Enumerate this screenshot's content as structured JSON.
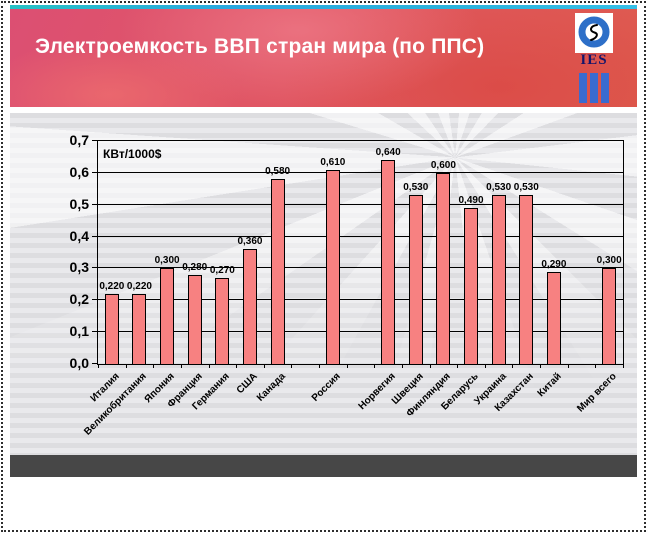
{
  "slide": {
    "title": "Электроемкость ВВП стран мира (по ППС)",
    "logo": {
      "text": "IES"
    }
  },
  "chart_data": {
    "type": "bar",
    "title": "Электроемкость ВВП стран мира (по ППС)",
    "y_axis": {
      "unit": "КВт/1000$",
      "min": 0,
      "max": 0.7,
      "step": 0.1,
      "ticks_top_to_bottom": [
        "0,7",
        "0,6",
        "0,5",
        "0,4",
        "0,3",
        "0,2",
        "0,1",
        "0,0"
      ]
    },
    "grid": true,
    "legend": false,
    "categories": [
      "Италия",
      "Великобритания",
      "Япония",
      "Франция",
      "Германия",
      "США",
      "Канада",
      "",
      "Россия",
      "",
      "Норвегия",
      "Швеция",
      "Финляндия",
      "Беларусь",
      "Украина",
      "Казахстан",
      "Китай",
      "",
      "Мир всего"
    ],
    "values": [
      0.22,
      0.22,
      0.3,
      0.28,
      0.27,
      0.36,
      0.58,
      null,
      0.61,
      null,
      0.64,
      0.53,
      0.6,
      0.49,
      0.53,
      0.53,
      0.29,
      null,
      0.3
    ],
    "value_labels": [
      "0,220",
      "0,220",
      "0,300",
      "0,280",
      "0,270",
      "0,360",
      "0,580",
      null,
      "0,610",
      null,
      "0,640",
      "0,530",
      "0,600",
      "0,490",
      "0,530",
      "0,530",
      "0,290",
      null,
      "0,300"
    ]
  },
  "colors": {
    "bar_fill": "#f78181",
    "bar_border": "#000000",
    "header_gradient_left": "#dc4f73",
    "header_gradient_right": "#de5a4e",
    "top_stripe_cyan": "#2bb3dc",
    "logo_blue": "#3a6bd0",
    "logo_text_navy": "#15156a",
    "bottom_strip_gray": "#474747"
  }
}
